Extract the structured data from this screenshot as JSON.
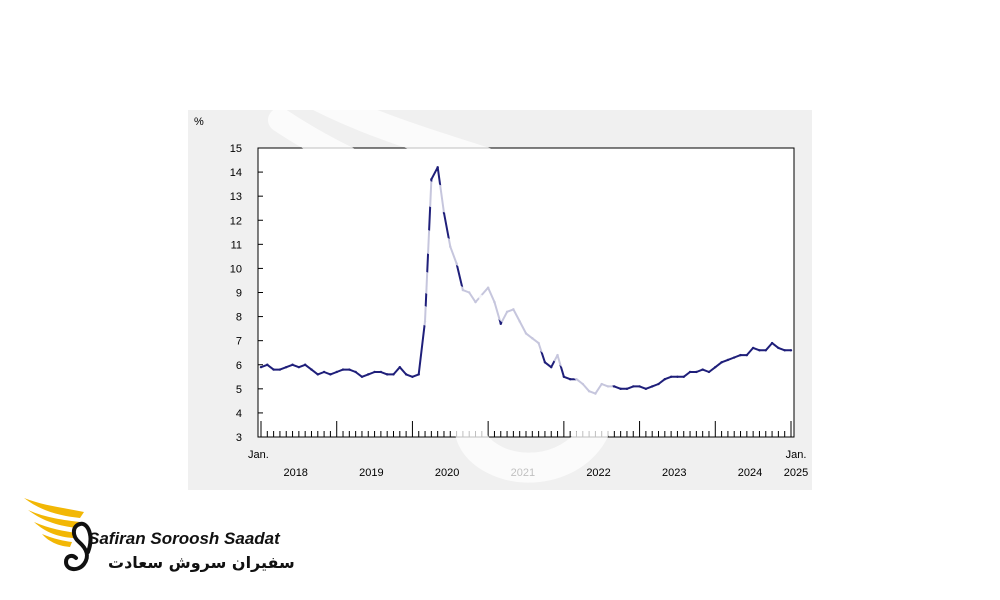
{
  "chart_data": {
    "type": "line",
    "ylabel": "%",
    "ylim": [
      3,
      15
    ],
    "yticks": [
      3,
      4,
      5,
      6,
      7,
      8,
      9,
      10,
      11,
      12,
      13,
      14,
      15
    ],
    "x_start_label": "Jan.",
    "x_end_label": "Jan.",
    "year_labels": [
      "2018",
      "2019",
      "2020",
      "2021",
      "2022",
      "2023",
      "2024",
      "2025"
    ],
    "grid": false,
    "line_color": "#1f1f7a",
    "x": [
      "2018-01",
      "2018-02",
      "2018-03",
      "2018-04",
      "2018-05",
      "2018-06",
      "2018-07",
      "2018-08",
      "2018-09",
      "2018-10",
      "2018-11",
      "2018-12",
      "2019-01",
      "2019-02",
      "2019-03",
      "2019-04",
      "2019-05",
      "2019-06",
      "2019-07",
      "2019-08",
      "2019-09",
      "2019-10",
      "2019-11",
      "2019-12",
      "2020-01",
      "2020-02",
      "2020-03",
      "2020-04",
      "2020-05",
      "2020-06",
      "2020-07",
      "2020-08",
      "2020-09",
      "2020-10",
      "2020-11",
      "2020-12",
      "2021-01",
      "2021-02",
      "2021-03",
      "2021-04",
      "2021-05",
      "2021-06",
      "2021-07",
      "2021-08",
      "2021-09",
      "2021-10",
      "2021-11",
      "2021-12",
      "2022-01",
      "2022-02",
      "2022-03",
      "2022-04",
      "2022-05",
      "2022-06",
      "2022-07",
      "2022-08",
      "2022-09",
      "2022-10",
      "2022-11",
      "2022-12",
      "2023-01",
      "2023-02",
      "2023-03",
      "2023-04",
      "2023-05",
      "2023-06",
      "2023-07",
      "2023-08",
      "2023-09",
      "2023-10",
      "2023-11",
      "2023-12",
      "2024-01",
      "2024-02",
      "2024-03",
      "2024-04",
      "2024-05",
      "2024-06",
      "2024-07",
      "2024-08",
      "2024-09",
      "2024-10",
      "2024-11",
      "2024-12",
      "2025-01"
    ],
    "values": [
      5.9,
      6.0,
      5.8,
      5.8,
      5.9,
      6.0,
      5.9,
      6.0,
      5.8,
      5.6,
      5.7,
      5.6,
      5.7,
      5.8,
      5.8,
      5.7,
      5.5,
      5.6,
      5.7,
      5.7,
      5.6,
      5.6,
      5.9,
      5.6,
      5.5,
      5.6,
      7.8,
      13.7,
      14.2,
      12.3,
      10.9,
      10.2,
      9.1,
      9.0,
      8.6,
      8.9,
      9.2,
      8.6,
      7.7,
      8.2,
      8.3,
      7.8,
      7.3,
      7.1,
      6.9,
      6.1,
      5.9,
      6.4,
      5.5,
      5.4,
      5.4,
      5.2,
      4.9,
      4.8,
      5.2,
      5.1,
      5.1,
      5.0,
      5.0,
      5.1,
      5.1,
      5.0,
      5.1,
      5.2,
      5.4,
      5.5,
      5.5,
      5.5,
      5.7,
      5.7,
      5.8,
      5.7,
      5.9,
      6.1,
      6.2,
      6.3,
      6.4,
      6.4,
      6.7,
      6.6,
      6.6,
      6.9,
      6.7,
      6.6,
      6.6
    ]
  },
  "logo": {
    "name_en": "Safiran Soroosh Saadat",
    "name_fa": "سفیران سروش سعادت",
    "gold": "#f2b705",
    "black": "#111111"
  }
}
